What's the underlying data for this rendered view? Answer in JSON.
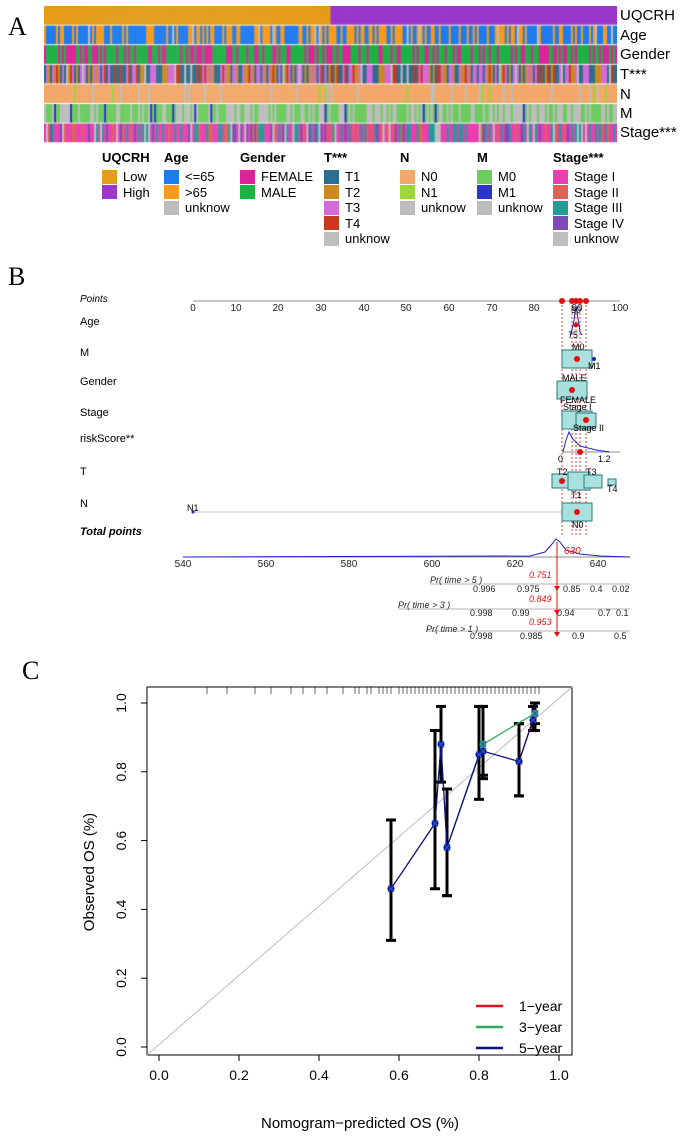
{
  "panel_letters": {
    "a": "A",
    "b": "B",
    "c": "C"
  },
  "heatmap": {
    "row_labels": [
      "UQCRH",
      "Age",
      "Gender",
      "T***",
      "N",
      "M",
      "Stage***"
    ],
    "colors": {
      "low": "#E59C17",
      "high": "#9B36CC",
      "age_le65": "#1E7CF0",
      "age_gt65": "#F79A1D",
      "unknown": "#BDBDBD",
      "female": "#E0219A",
      "male": "#1DB244",
      "t1": "#2D6E8E",
      "t2": "#CC8921",
      "t3": "#D469D8",
      "t4": "#C9391E",
      "n0": "#F2A86A",
      "n1": "#9CD63A",
      "m0": "#6CCD5E",
      "m1": "#2B35C9",
      "stage1": "#E83FB2",
      "stage2": "#DE6255",
      "stage3": "#219C99",
      "stage4": "#7E4AB5"
    }
  },
  "legend": [
    {
      "title": "UQCRH",
      "items": [
        {
          "label": "Low",
          "color": "#E59C17"
        },
        {
          "label": "High",
          "color": "#9B36CC"
        }
      ]
    },
    {
      "title": "Age",
      "items": [
        {
          "label": "<=65",
          "color": "#1E7CF0"
        },
        {
          "label": ">65",
          "color": "#F79A1D"
        },
        {
          "label": "unknow",
          "color": "#BDBDBD"
        }
      ]
    },
    {
      "title": "Gender",
      "items": [
        {
          "label": "FEMALE",
          "color": "#E0219A"
        },
        {
          "label": "MALE",
          "color": "#1DB244"
        }
      ]
    },
    {
      "title": "T***",
      "items": [
        {
          "label": "T1",
          "color": "#2D6E8E"
        },
        {
          "label": "T2",
          "color": "#CC8921"
        },
        {
          "label": "T3",
          "color": "#D469D8"
        },
        {
          "label": "T4",
          "color": "#C9391E"
        },
        {
          "label": "unknow",
          "color": "#BDBDBD"
        }
      ]
    },
    {
      "title": "N",
      "items": [
        {
          "label": "N0",
          "color": "#F2A86A"
        },
        {
          "label": "N1",
          "color": "#9CD63A"
        },
        {
          "label": "unknow",
          "color": "#BDBDBD"
        }
      ]
    },
    {
      "title": "M",
      "items": [
        {
          "label": "M0",
          "color": "#6CCD5E"
        },
        {
          "label": "M1",
          "color": "#2B35C9"
        },
        {
          "label": "unknow",
          "color": "#BDBDBD"
        }
      ]
    },
    {
      "title": "Stage***",
      "items": [
        {
          "label": "Stage I",
          "color": "#E83FB2"
        },
        {
          "label": "Stage II",
          "color": "#DE6255"
        },
        {
          "label": "Stage III",
          "color": "#219C99"
        },
        {
          "label": "Stage IV",
          "color": "#7E4AB5"
        },
        {
          "label": "unknow",
          "color": "#BDBDBD"
        }
      ]
    }
  ],
  "nomogram": {
    "rows": [
      "Points",
      "Age",
      "M",
      "Gender",
      "Stage",
      "riskScore**",
      "T",
      "N",
      "Total points"
    ],
    "points_ticks": [
      "0",
      "10",
      "20",
      "30",
      "40",
      "50",
      "60",
      "70",
      "80",
      "90",
      "100"
    ],
    "total_ticks": [
      "540",
      "560",
      "580",
      "600",
      "620",
      "640"
    ],
    "labels": {
      "age_50": "50",
      "age_75": "75",
      "m0": "M0",
      "m1": "M1",
      "male": "MALE",
      "female": "FEMALE",
      "stage1": "Stage I",
      "stage2": "Stage II",
      "risk_0": "0",
      "risk_12": "1.2",
      "t2": "T2",
      "t3": "T3",
      "t1": "T1",
      "t4": "T4",
      "n1": "N1",
      "n0": "N0"
    },
    "total_value": "630",
    "probabilities": [
      {
        "label": "Pr( time > 5 )",
        "value": "0.751",
        "ticks": [
          "0.996",
          "0.975",
          "0.85",
          "0.4",
          "0.02"
        ]
      },
      {
        "label": "Pr( time > 3 )",
        "value": "0.849",
        "ticks": [
          "0.998",
          "0.99",
          "0.94",
          "0.7",
          "0.1"
        ]
      },
      {
        "label": "Pr( time > 1 )",
        "value": "0.953",
        "ticks": [
          "0.998",
          "0.985",
          "0.9",
          "0.5"
        ]
      }
    ]
  },
  "chart_data": {
    "type": "line",
    "title": "",
    "xlabel": "Nomogram−predicted OS (%)",
    "ylabel": "Observed OS (%)",
    "xlim": [
      0.0,
      1.0
    ],
    "ylim": [
      0.0,
      1.0
    ],
    "x_ticks": [
      "0.0",
      "0.2",
      "0.4",
      "0.6",
      "0.8",
      "1.0"
    ],
    "y_ticks": [
      "0.0",
      "0.2",
      "0.4",
      "0.6",
      "0.8",
      "1.0"
    ],
    "legend_position": "bottom-right",
    "series": [
      {
        "name": "1−year",
        "color": "#D7191C",
        "x": [
          0.9,
          0.94
        ],
        "y": [
          0.83,
          0.97
        ],
        "ci": [
          [
            0.73,
            0.94
          ],
          [
            0.92,
            1.0
          ]
        ]
      },
      {
        "name": "3−year",
        "color": "#2EAD5C",
        "x": [
          0.72,
          0.81,
          0.94
        ],
        "y": [
          0.58,
          0.88,
          0.97
        ],
        "ci": [
          [
            0.44,
            0.75
          ],
          [
            0.79,
            0.99
          ],
          [
            0.94,
            1.0
          ]
        ]
      },
      {
        "name": "5−year",
        "color": "#101080",
        "x": [
          0.58,
          0.69,
          0.705,
          0.72,
          0.8,
          0.81,
          0.9,
          0.935
        ],
        "y": [
          0.46,
          0.65,
          0.88,
          0.58,
          0.85,
          0.86,
          0.83,
          0.95
        ],
        "ci": [
          [
            0.31,
            0.66
          ],
          [
            0.46,
            0.92
          ],
          [
            0.77,
            0.99
          ],
          [
            0.44,
            0.75
          ],
          [
            0.72,
            0.99
          ],
          [
            0.78,
            0.99
          ],
          [
            0.73,
            0.94
          ],
          [
            0.92,
            0.99
          ]
        ]
      }
    ]
  }
}
